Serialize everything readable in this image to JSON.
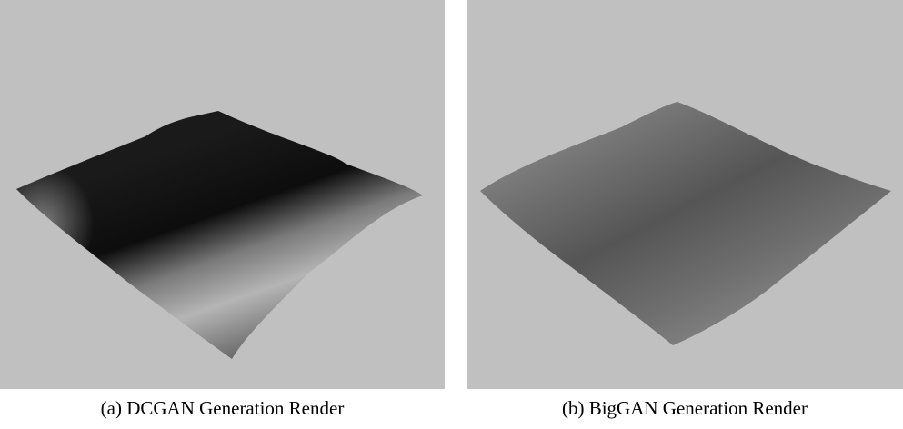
{
  "figure": {
    "panels": [
      {
        "caption": "(a) DCGAN Generation Render"
      },
      {
        "caption": "(b) BigGAN Generation Render"
      }
    ]
  }
}
